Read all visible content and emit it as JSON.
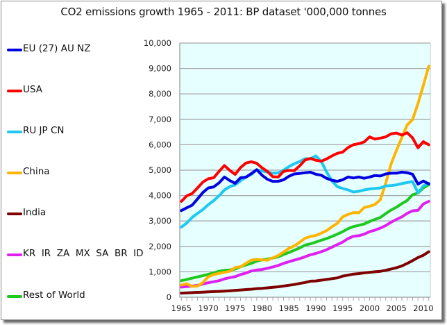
{
  "chart_data": {
    "type": "line",
    "title": "CO2 emissions growth 1965 - 2011: BP dataset   '000,000 tonnes",
    "xlabel": "",
    "ylabel": "",
    "ylim": [
      0,
      10000
    ],
    "xlim": [
      1965,
      2011
    ],
    "grid": true,
    "legend_position": "left",
    "plot_background": "#e6ffff",
    "y_ticks": [
      0,
      1000,
      2000,
      3000,
      4000,
      5000,
      6000,
      7000,
      8000,
      9000,
      10000
    ],
    "y_tick_labels": [
      "0",
      "1,000",
      "2,000",
      "3,000",
      "4,000",
      "5,000",
      "6,000",
      "7,000",
      "8,000",
      "9,000",
      "10,000"
    ],
    "x_tick_labels": [
      "1965",
      "1970",
      "1975",
      "1980",
      "1985",
      "1990",
      "1995",
      "2000",
      "2005",
      "2010"
    ],
    "x_tick_values": [
      1965,
      1970,
      1975,
      1980,
      1985,
      1990,
      1995,
      2000,
      2005,
      2010
    ],
    "x": [
      1965,
      1966,
      1967,
      1968,
      1969,
      1970,
      1971,
      1972,
      1973,
      1974,
      1975,
      1976,
      1977,
      1978,
      1979,
      1980,
      1981,
      1982,
      1983,
      1984,
      1985,
      1986,
      1987,
      1988,
      1989,
      1990,
      1991,
      1992,
      1993,
      1994,
      1995,
      1996,
      1997,
      1998,
      1999,
      2000,
      2001,
      2002,
      2003,
      2004,
      2005,
      2006,
      2007,
      2008,
      2009,
      2010,
      2011
    ],
    "series": [
      {
        "name": "EU (27) AU NZ",
        "color": "#0000e0",
        "values": [
          3410,
          3520,
          3620,
          3870,
          4120,
          4300,
          4340,
          4500,
          4730,
          4590,
          4480,
          4700,
          4720,
          4860,
          5020,
          4800,
          4640,
          4560,
          4560,
          4620,
          4760,
          4850,
          4870,
          4900,
          4920,
          4840,
          4800,
          4680,
          4600,
          4560,
          4620,
          4730,
          4690,
          4730,
          4680,
          4730,
          4790,
          4770,
          4850,
          4880,
          4880,
          4920,
          4900,
          4840,
          4450,
          4570,
          4460
        ]
      },
      {
        "name": "USA",
        "color": "#ff0000",
        "values": [
          3770,
          3990,
          4080,
          4300,
          4530,
          4660,
          4700,
          4950,
          5180,
          4990,
          4830,
          5100,
          5280,
          5330,
          5270,
          5090,
          4950,
          4740,
          4730,
          4950,
          4990,
          4980,
          5170,
          5400,
          5460,
          5390,
          5350,
          5440,
          5560,
          5660,
          5710,
          5890,
          6000,
          6040,
          6110,
          6310,
          6220,
          6260,
          6310,
          6430,
          6460,
          6380,
          6470,
          6270,
          5880,
          6120,
          6000
        ]
      },
      {
        "name": "RU JP CN",
        "color": "#1ec8f0",
        "values": [
          2760,
          2920,
          3140,
          3300,
          3450,
          3640,
          3800,
          3990,
          4220,
          4350,
          4420,
          4580,
          4730,
          4830,
          5010,
          4970,
          4920,
          4880,
          4890,
          5000,
          5140,
          5250,
          5340,
          5450,
          5450,
          5560,
          5350,
          4930,
          4580,
          4350,
          4280,
          4220,
          4140,
          4170,
          4220,
          4260,
          4280,
          4300,
          4380,
          4390,
          4420,
          4470,
          4510,
          4550,
          4110,
          4380,
          4480
        ]
      },
      {
        "name": "China",
        "color": "#ffb400",
        "values": [
          480,
          530,
          430,
          440,
          580,
          800,
          890,
          940,
          980,
          1020,
          1170,
          1200,
          1330,
          1460,
          1490,
          1470,
          1460,
          1550,
          1640,
          1780,
          1920,
          2020,
          2160,
          2320,
          2390,
          2430,
          2520,
          2620,
          2770,
          2910,
          3160,
          3260,
          3330,
          3320,
          3530,
          3580,
          3650,
          3840,
          4480,
          5240,
          5780,
          6280,
          6780,
          6990,
          7620,
          8330,
          9090
        ]
      },
      {
        "name": "India",
        "color": "#7f0000",
        "values": [
          160,
          170,
          180,
          190,
          200,
          210,
          220,
          230,
          240,
          255,
          270,
          285,
          300,
          315,
          340,
          350,
          370,
          390,
          410,
          440,
          470,
          500,
          540,
          580,
          630,
          640,
          670,
          700,
          730,
          760,
          830,
          870,
          910,
          930,
          960,
          980,
          1000,
          1020,
          1060,
          1110,
          1160,
          1230,
          1330,
          1440,
          1560,
          1650,
          1790
        ]
      },
      {
        "name": "KR  IR  ZA  MX  SA  BR  ID",
        "color": "#e020f0",
        "values": [
          400,
          420,
          440,
          470,
          520,
          570,
          610,
          650,
          720,
          770,
          810,
          890,
          950,
          1030,
          1070,
          1090,
          1140,
          1190,
          1250,
          1330,
          1400,
          1460,
          1520,
          1590,
          1670,
          1720,
          1790,
          1870,
          1970,
          2070,
          2170,
          2310,
          2400,
          2420,
          2480,
          2580,
          2640,
          2720,
          2820,
          2950,
          3060,
          3160,
          3300,
          3400,
          3420,
          3670,
          3770
        ]
      },
      {
        "name": "Rest of World",
        "color": "#1ec81e",
        "values": [
          650,
          700,
          750,
          800,
          850,
          900,
          960,
          1020,
          1060,
          1070,
          1110,
          1200,
          1270,
          1330,
          1420,
          1470,
          1500,
          1540,
          1590,
          1680,
          1760,
          1850,
          1940,
          2050,
          2100,
          2170,
          2240,
          2310,
          2390,
          2480,
          2580,
          2700,
          2780,
          2830,
          2880,
          2980,
          3060,
          3140,
          3290,
          3430,
          3540,
          3680,
          3810,
          4030,
          4100,
          4300,
          4430
        ]
      }
    ]
  }
}
